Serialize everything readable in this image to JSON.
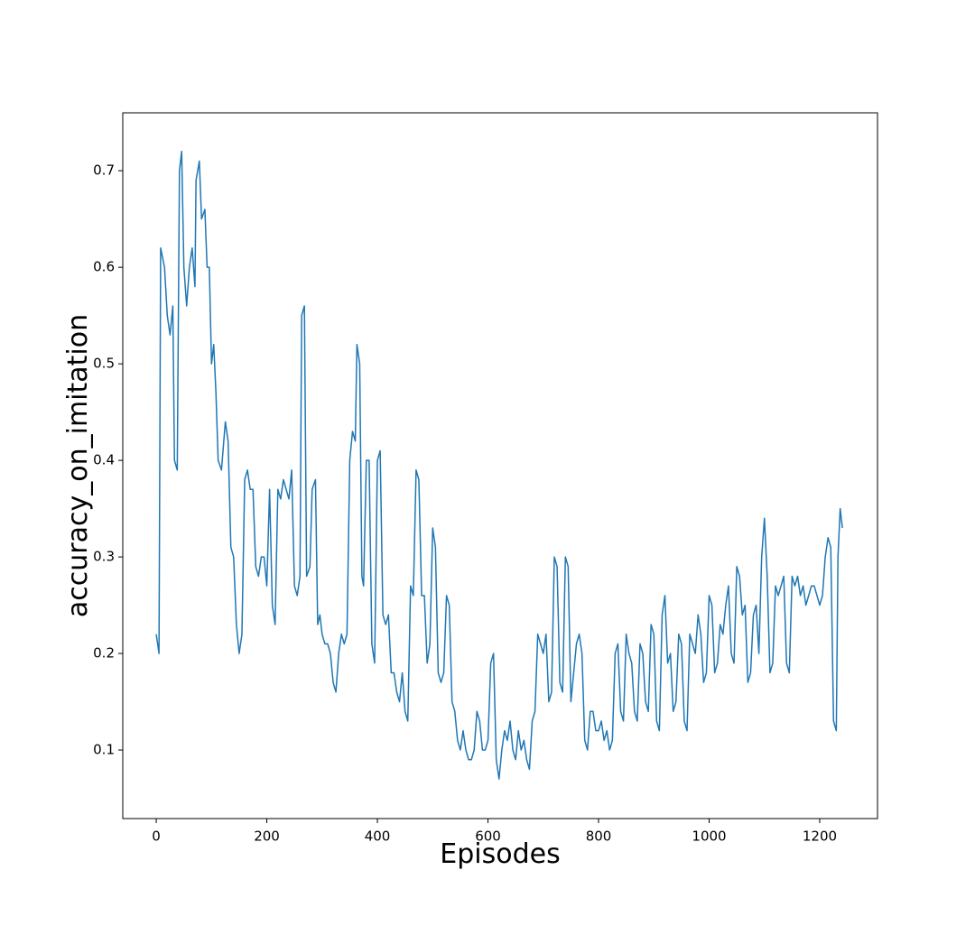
{
  "chart_data": {
    "type": "line",
    "xlabel": "Episodes",
    "ylabel": "accuracy_on_imitation",
    "xlim": [
      -60.5,
      1304.5
    ],
    "ylim": [
      0.029,
      0.76
    ],
    "xticks": [
      0,
      200,
      400,
      600,
      800,
      1000,
      1200
    ],
    "yticks": [
      0.1,
      0.2,
      0.3,
      0.4,
      0.5,
      0.6,
      0.7
    ],
    "color": "#1f77b4",
    "x": [
      0,
      5,
      8,
      15,
      20,
      25,
      30,
      33,
      38,
      42,
      46,
      50,
      55,
      60,
      65,
      70,
      72,
      78,
      82,
      88,
      92,
      96,
      100,
      104,
      108,
      112,
      118,
      125,
      130,
      135,
      140,
      145,
      150,
      155,
      160,
      165,
      170,
      175,
      180,
      185,
      190,
      195,
      200,
      205,
      210,
      215,
      220,
      225,
      230,
      235,
      240,
      245,
      250,
      255,
      260,
      263,
      268,
      272,
      278,
      282,
      288,
      292,
      296,
      300,
      305,
      310,
      315,
      320,
      325,
      330,
      335,
      340,
      345,
      350,
      355,
      360,
      363,
      368,
      372,
      375,
      380,
      385,
      390,
      395,
      400,
      405,
      410,
      415,
      420,
      425,
      430,
      435,
      440,
      445,
      450,
      455,
      460,
      465,
      470,
      475,
      480,
      485,
      490,
      495,
      500,
      505,
      510,
      515,
      520,
      525,
      530,
      535,
      540,
      545,
      550,
      555,
      560,
      565,
      570,
      575,
      580,
      585,
      590,
      595,
      600,
      605,
      610,
      615,
      620,
      625,
      630,
      635,
      640,
      645,
      650,
      655,
      660,
      665,
      670,
      675,
      680,
      685,
      690,
      695,
      700,
      705,
      710,
      715,
      720,
      725,
      730,
      735,
      740,
      745,
      750,
      755,
      760,
      765,
      770,
      775,
      780,
      785,
      790,
      795,
      800,
      805,
      810,
      815,
      820,
      825,
      830,
      835,
      840,
      845,
      850,
      855,
      860,
      865,
      870,
      875,
      880,
      885,
      890,
      895,
      900,
      905,
      910,
      915,
      920,
      925,
      930,
      935,
      940,
      945,
      950,
      955,
      960,
      965,
      970,
      975,
      980,
      985,
      990,
      995,
      1000,
      1005,
      1010,
      1015,
      1020,
      1025,
      1030,
      1035,
      1040,
      1045,
      1050,
      1055,
      1060,
      1065,
      1070,
      1075,
      1080,
      1085,
      1090,
      1095,
      1100,
      1105,
      1110,
      1115,
      1120,
      1125,
      1130,
      1135,
      1140,
      1145,
      1150,
      1155,
      1160,
      1165,
      1170,
      1175,
      1180,
      1185,
      1190,
      1195,
      1200,
      1205,
      1210,
      1215,
      1220,
      1225,
      1230,
      1233,
      1237,
      1241
    ],
    "values": [
      0.22,
      0.2,
      0.62,
      0.6,
      0.55,
      0.53,
      0.56,
      0.4,
      0.39,
      0.7,
      0.72,
      0.6,
      0.56,
      0.6,
      0.62,
      0.58,
      0.69,
      0.71,
      0.65,
      0.66,
      0.6,
      0.6,
      0.5,
      0.52,
      0.47,
      0.4,
      0.39,
      0.44,
      0.42,
      0.31,
      0.3,
      0.23,
      0.2,
      0.22,
      0.38,
      0.39,
      0.37,
      0.37,
      0.29,
      0.28,
      0.3,
      0.3,
      0.27,
      0.37,
      0.25,
      0.23,
      0.37,
      0.36,
      0.38,
      0.37,
      0.36,
      0.39,
      0.27,
      0.26,
      0.28,
      0.55,
      0.56,
      0.28,
      0.29,
      0.37,
      0.38,
      0.23,
      0.24,
      0.22,
      0.21,
      0.21,
      0.2,
      0.17,
      0.16,
      0.2,
      0.22,
      0.21,
      0.22,
      0.4,
      0.43,
      0.42,
      0.52,
      0.5,
      0.28,
      0.27,
      0.4,
      0.4,
      0.21,
      0.19,
      0.4,
      0.41,
      0.24,
      0.23,
      0.24,
      0.18,
      0.18,
      0.16,
      0.15,
      0.18,
      0.14,
      0.13,
      0.27,
      0.26,
      0.39,
      0.38,
      0.26,
      0.26,
      0.19,
      0.21,
      0.33,
      0.31,
      0.18,
      0.17,
      0.18,
      0.26,
      0.25,
      0.15,
      0.14,
      0.11,
      0.1,
      0.12,
      0.1,
      0.09,
      0.09,
      0.1,
      0.14,
      0.13,
      0.1,
      0.1,
      0.11,
      0.19,
      0.2,
      0.09,
      0.07,
      0.1,
      0.12,
      0.11,
      0.13,
      0.1,
      0.09,
      0.12,
      0.1,
      0.11,
      0.09,
      0.08,
      0.13,
      0.14,
      0.22,
      0.21,
      0.2,
      0.22,
      0.15,
      0.16,
      0.3,
      0.29,
      0.17,
      0.16,
      0.3,
      0.29,
      0.15,
      0.18,
      0.21,
      0.22,
      0.2,
      0.11,
      0.1,
      0.14,
      0.14,
      0.12,
      0.12,
      0.13,
      0.11,
      0.12,
      0.1,
      0.11,
      0.2,
      0.21,
      0.14,
      0.13,
      0.22,
      0.2,
      0.19,
      0.14,
      0.13,
      0.21,
      0.2,
      0.15,
      0.14,
      0.23,
      0.22,
      0.13,
      0.12,
      0.24,
      0.26,
      0.19,
      0.2,
      0.14,
      0.15,
      0.22,
      0.21,
      0.13,
      0.12,
      0.22,
      0.21,
      0.2,
      0.24,
      0.22,
      0.17,
      0.18,
      0.26,
      0.25,
      0.18,
      0.19,
      0.23,
      0.22,
      0.25,
      0.27,
      0.2,
      0.19,
      0.29,
      0.28,
      0.24,
      0.25,
      0.17,
      0.18,
      0.24,
      0.25,
      0.2,
      0.3,
      0.34,
      0.28,
      0.18,
      0.19,
      0.27,
      0.26,
      0.27,
      0.28,
      0.19,
      0.18,
      0.28,
      0.27,
      0.28,
      0.26,
      0.27,
      0.25,
      0.26,
      0.27,
      0.27,
      0.26,
      0.25,
      0.26,
      0.3,
      0.32,
      0.31,
      0.13,
      0.12,
      0.3,
      0.35,
      0.33
    ]
  }
}
